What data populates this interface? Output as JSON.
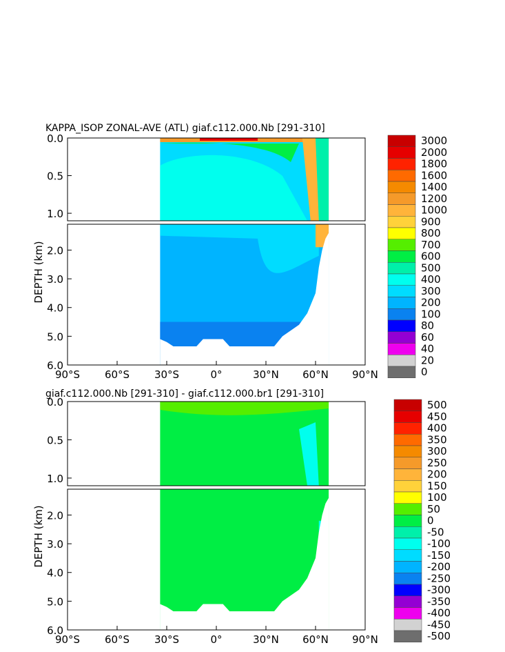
{
  "chart_data": [
    {
      "type": "heatmap",
      "title": "KAPPA_ISOP ZONAL-AVE (ATL) giaf.c112.000.Nb [291-310]",
      "ylabel": "DEPTH (km)",
      "xticks": [
        "90°S",
        "60°S",
        "30°S",
        "0°",
        "30°N",
        "60°N",
        "90°N"
      ],
      "yticks_upper": [
        "0.0",
        "0.5",
        "1.0"
      ],
      "yticks_lower": [
        "2.0",
        "3.0",
        "4.0",
        "5.0",
        "6.0"
      ],
      "xlim": [
        -90,
        90
      ],
      "ylim_upper": [
        0,
        1.1
      ],
      "ylim_lower": [
        1.1,
        6.0
      ],
      "colorbar": [
        {
          "label": "3000",
          "color": "#c80000"
        },
        {
          "label": "2000",
          "color": "#e60000"
        },
        {
          "label": "1800",
          "color": "#ff2200"
        },
        {
          "label": "1600",
          "color": "#ff6a00"
        },
        {
          "label": "1400",
          "color": "#f58a00"
        },
        {
          "label": "1200",
          "color": "#f59a2a"
        },
        {
          "label": "1000",
          "color": "#ffb43a"
        },
        {
          "label": "900",
          "color": "#ffd23a"
        },
        {
          "label": "800",
          "color": "#ffff00"
        },
        {
          "label": "700",
          "color": "#55ee00"
        },
        {
          "label": "600",
          "color": "#00ee44"
        },
        {
          "label": "500",
          "color": "#00f0aa"
        },
        {
          "label": "400",
          "color": "#00ffee"
        },
        {
          "label": "300",
          "color": "#00dcff"
        },
        {
          "label": "200",
          "color": "#00b4ff"
        },
        {
          "label": "100",
          "color": "#0a82f0"
        },
        {
          "label": "80",
          "color": "#0000ff"
        },
        {
          "label": "60",
          "color": "#9400d3"
        },
        {
          "label": "40",
          "color": "#ee00ee"
        },
        {
          "label": "20",
          "color": "#d2d2d2"
        },
        {
          "label": "0",
          "color": "#6e6e6e"
        }
      ]
    },
    {
      "type": "heatmap",
      "title": "giaf.c112.000.Nb [291-310] - giaf.c112.000.br1 [291-310]",
      "ylabel": "DEPTH (km)",
      "xticks": [
        "90°S",
        "60°S",
        "30°S",
        "0°",
        "30°N",
        "60°N",
        "90°N"
      ],
      "yticks_upper": [
        "0.0",
        "0.5",
        "1.0"
      ],
      "yticks_lower": [
        "2.0",
        "3.0",
        "4.0",
        "5.0",
        "6.0"
      ],
      "xlim": [
        -90,
        90
      ],
      "ylim_upper": [
        0,
        1.1
      ],
      "ylim_lower": [
        1.1,
        6.0
      ],
      "colorbar": [
        {
          "label": "500",
          "color": "#c80000"
        },
        {
          "label": "450",
          "color": "#e60000"
        },
        {
          "label": "400",
          "color": "#ff2200"
        },
        {
          "label": "350",
          "color": "#ff6a00"
        },
        {
          "label": "300",
          "color": "#f58a00"
        },
        {
          "label": "250",
          "color": "#f59a2a"
        },
        {
          "label": "200",
          "color": "#ffb43a"
        },
        {
          "label": "150",
          "color": "#ffd23a"
        },
        {
          "label": "100",
          "color": "#ffff00"
        },
        {
          "label": "50",
          "color": "#55ee00"
        },
        {
          "label": "0",
          "color": "#00ee44"
        },
        {
          "label": "-50",
          "color": "#00f0aa"
        },
        {
          "label": "-100",
          "color": "#00ffee"
        },
        {
          "label": "-150",
          "color": "#00dcff"
        },
        {
          "label": "-200",
          "color": "#00b4ff"
        },
        {
          "label": "-250",
          "color": "#0a82f0"
        },
        {
          "label": "-300",
          "color": "#0000ff"
        },
        {
          "label": "-350",
          "color": "#9400d3"
        },
        {
          "label": "-400",
          "color": "#ee00ee"
        },
        {
          "label": "-450",
          "color": "#d2d2d2"
        },
        {
          "label": "-500",
          "color": "#6e6e6e"
        }
      ]
    }
  ]
}
